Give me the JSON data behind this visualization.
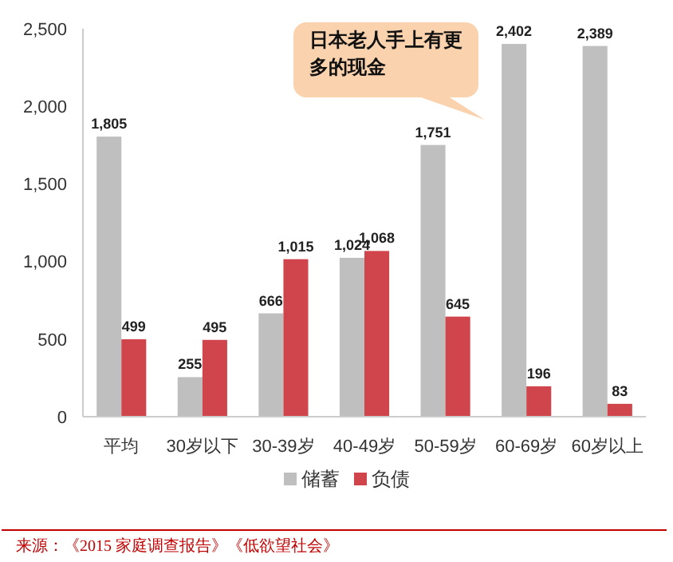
{
  "chart_data": {
    "type": "bar",
    "categories": [
      "平均",
      "30岁以下",
      "30-39岁",
      "40-49岁",
      "50-59岁",
      "60-69岁",
      "60岁以上"
    ],
    "series": [
      {
        "name": "储蓄",
        "color": "#bfbfbf",
        "values": [
          1805,
          255,
          666,
          1024,
          1751,
          2402,
          2389
        ],
        "value_labels": [
          "1,805",
          "255",
          "666",
          "1,024",
          "1,751",
          "2,402",
          "2,389"
        ]
      },
      {
        "name": "负债",
        "color": "#d0454c",
        "values": [
          499,
          495,
          1015,
          1068,
          645,
          196,
          83
        ],
        "value_labels": [
          "499",
          "495",
          "1,015",
          "1,068",
          "645",
          "196",
          "83"
        ]
      }
    ],
    "ylim": [
      0,
      2500
    ],
    "yticks": [
      0,
      {
        "value": 500,
        "label": "500"
      },
      {
        "value": 1000,
        "label": "1,000"
      },
      {
        "value": 1500,
        "label": "1,500"
      },
      {
        "value": 2000,
        "label": "2,000"
      },
      {
        "value": 2500,
        "label": "2,500"
      }
    ],
    "legend": "bottom",
    "annotations": [
      "日本老人手上有更多的现金",
      "来源：《2015 家庭调查报告》《低欲望社会》"
    ]
  }
}
